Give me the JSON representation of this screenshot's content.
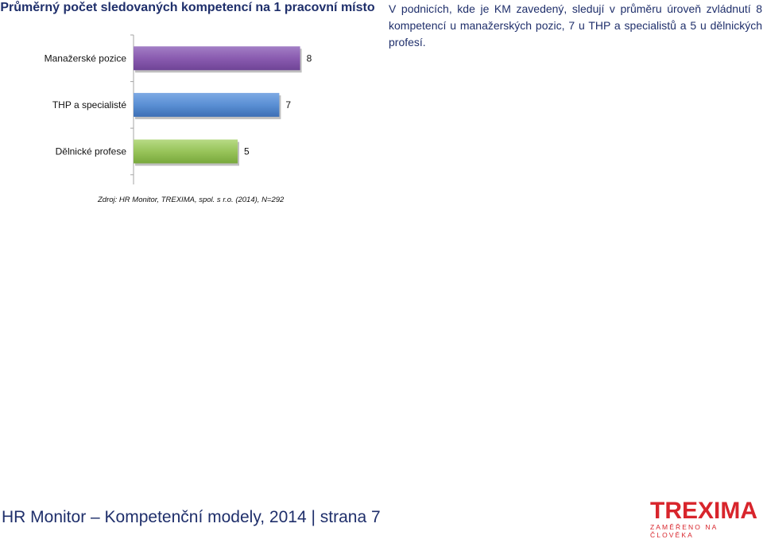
{
  "title": "Průměrný počet sledovaných kompetencí na 1 pracovní místo",
  "description": "V podnicích, kde je KM zavedený, sledují v průměru úroveň zvládnutí 8 kompetencí u manažerských pozic, 7 u THP a specialistů a 5 u dělnických profesí.",
  "source": "Zdroj: HR  Monitor, TREXIMA, spol. s r.o.  (2014), N=292",
  "footer": "HR Monitor – Kompetenční modely, 2014 | strana 7",
  "logo": {
    "word": "TREXIMA",
    "tagline": "ZAMĚŘENO NA ČLOVĚKA"
  },
  "colors": {
    "text": "#1f2f6b",
    "brand": "#d8252c"
  },
  "chart_data": {
    "type": "bar",
    "orientation": "horizontal",
    "categories": [
      "Manažerské pozice",
      "THP a specialisté",
      "Dělnické profese"
    ],
    "values": [
      8,
      7,
      5
    ],
    "colors": [
      "#8a5bb0",
      "#5a8fd4",
      "#98c45a"
    ],
    "data_labels": [
      "8",
      "7",
      "5"
    ],
    "xlim": [
      0,
      10
    ],
    "grid": false
  }
}
